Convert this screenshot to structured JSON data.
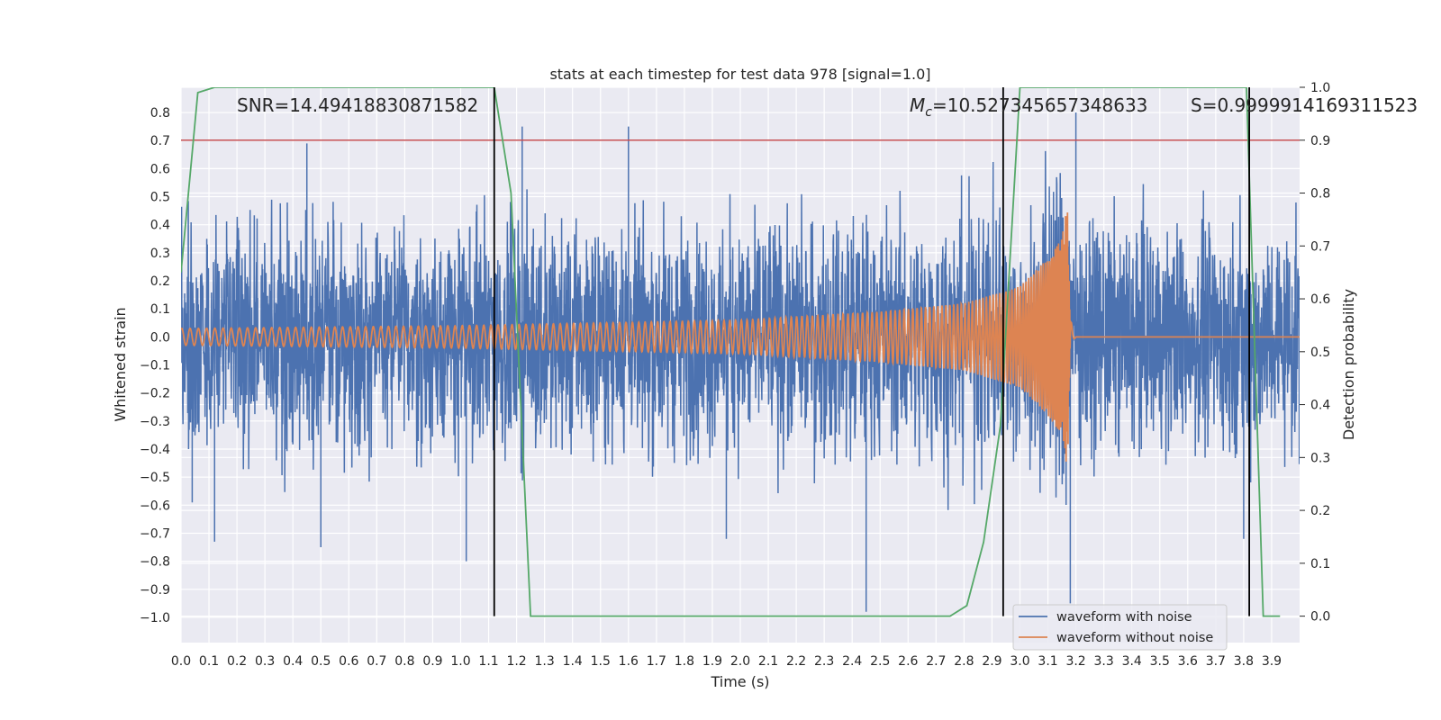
{
  "chart_data": {
    "type": "line",
    "title": "stats at each timestep for test data 978 [signal=1.0]",
    "xlabel": "Time (s)",
    "ylabel": "Whitened strain",
    "y2label": "Detection probability",
    "xlim": [
      0.0,
      4.0
    ],
    "ylim": [
      -1.09,
      0.89
    ],
    "y2lim": [
      -0.05,
      1.0
    ],
    "x_ticks": [
      0.0,
      0.1,
      0.2,
      0.3,
      0.4,
      0.5,
      0.6,
      0.7,
      0.8,
      0.9,
      1.0,
      1.1,
      1.2,
      1.3,
      1.4,
      1.5,
      1.6,
      1.7,
      1.8,
      1.9,
      2.0,
      2.1,
      2.2,
      2.3,
      2.4,
      2.5,
      2.6,
      2.7,
      2.8,
      2.9,
      3.0,
      3.1,
      3.2,
      3.3,
      3.4,
      3.5,
      3.6,
      3.7,
      3.8,
      3.9
    ],
    "y_ticks": [
      0.8,
      0.7,
      0.6,
      0.5,
      0.4,
      0.3,
      0.2,
      0.1,
      0.0,
      -0.1,
      -0.2,
      -0.3,
      -0.4,
      -0.5,
      -0.6,
      -0.7,
      -0.8,
      -0.9,
      -1.0
    ],
    "y2_ticks": [
      1.0,
      0.9,
      0.8,
      0.7,
      0.6,
      0.5,
      0.4,
      0.3,
      0.2,
      0.1,
      0.0
    ],
    "grid": true,
    "legend_position": "lower-right",
    "annotations": {
      "snr": "SNR=14.49418830871582",
      "mc_symbol": "M",
      "mc_sub": "c",
      "mc_value": "=10.527345657348633",
      "s": "S=0.9999914169311523"
    },
    "colors": {
      "noisy": "#4c72b0",
      "clean": "#dd8452",
      "probability": "#55a868",
      "threshold": "#c44e52",
      "vline": "#000000",
      "background": "#eaeaf2"
    },
    "series": [
      {
        "name": "waveform with noise",
        "axis": "left",
        "style": "noise",
        "amplitude_approx": 0.35,
        "extremes": [
          [
            0.04,
            -0.59
          ],
          [
            0.12,
            -0.73
          ],
          [
            0.45,
            0.69
          ],
          [
            0.5,
            -0.75
          ],
          [
            1.02,
            -0.8
          ],
          [
            1.22,
            0.75
          ],
          [
            1.6,
            0.75
          ],
          [
            1.95,
            -0.72
          ],
          [
            2.45,
            -0.98
          ],
          [
            3.18,
            -0.95
          ],
          [
            3.2,
            0.8
          ],
          [
            3.8,
            -0.72
          ]
        ]
      },
      {
        "name": "waveform without noise",
        "axis": "left",
        "style": "chirp",
        "envelope": [
          [
            0.0,
            0.03
          ],
          [
            1.0,
            0.04
          ],
          [
            2.0,
            0.06
          ],
          [
            2.5,
            0.09
          ],
          [
            2.8,
            0.12
          ],
          [
            3.0,
            0.18
          ],
          [
            3.1,
            0.28
          ],
          [
            3.15,
            0.35
          ],
          [
            3.17,
            0.5
          ],
          [
            3.18,
            0.0
          ],
          [
            4.0,
            0.0
          ]
        ],
        "merger_time": 3.18
      },
      {
        "name": "detection probability",
        "axis": "right",
        "x": [
          0.0,
          0.06,
          0.12,
          0.5,
          1.0,
          1.12,
          1.18,
          1.25,
          1.5,
          2.0,
          2.5,
          2.75,
          2.81,
          2.87,
          2.93,
          3.0,
          3.5,
          3.81,
          3.87,
          3.93
        ],
        "y": [
          0.65,
          0.99,
          1.0,
          1.0,
          1.0,
          1.0,
          0.8,
          0.0,
          0.0,
          0.0,
          0.0,
          0.0,
          0.02,
          0.14,
          0.36,
          1.0,
          1.0,
          1.0,
          0.0,
          0.0
        ]
      }
    ],
    "threshold": {
      "axis": "right",
      "y": 0.9
    },
    "vlines": [
      1.12,
      2.94,
      3.82
    ]
  }
}
